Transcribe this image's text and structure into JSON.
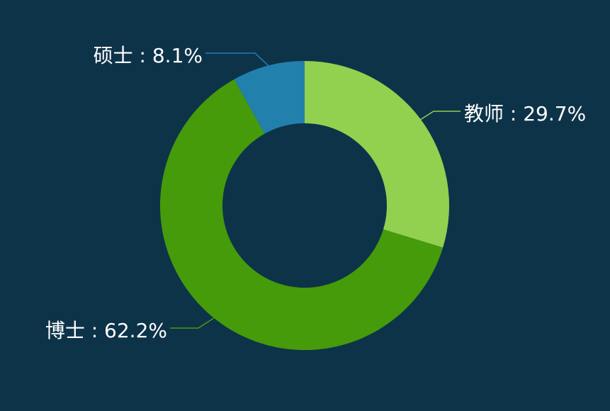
{
  "chart_data": {
    "type": "pie",
    "variant": "donut",
    "start": "top",
    "direction": "clockwise",
    "slices": [
      {
        "name": "教师",
        "value": 29.7,
        "label": "教师 : 29.7%",
        "color": "#92d050"
      },
      {
        "name": "博士",
        "value": 62.2,
        "label": "博士 : 62.2%",
        "color": "#459b0a"
      },
      {
        "name": "硕士",
        "value": 8.1,
        "label": "硕士 : 8.1%",
        "color": "#2280ad"
      }
    ],
    "legend": "none",
    "background": "#0d3349"
  }
}
